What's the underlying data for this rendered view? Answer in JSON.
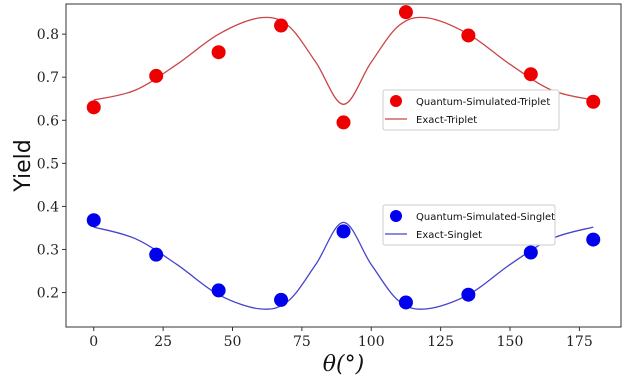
{
  "chart_data": {
    "type": "scatter",
    "xlabel": "θ(°)",
    "ylabel": "Yield",
    "xlim": [
      -10,
      190
    ],
    "ylim": [
      0.12,
      0.87
    ],
    "xticks": [
      0,
      25,
      50,
      75,
      100,
      125,
      150,
      175
    ],
    "yticks": [
      0.2,
      0.3,
      0.4,
      0.5,
      0.6,
      0.7,
      0.8
    ],
    "grid": false,
    "series": [
      {
        "name": "Quantum-Simulated-Triplet",
        "kind": "scatter",
        "color": "#ee0000",
        "x": [
          0,
          22.5,
          45,
          67.5,
          90,
          112.5,
          135,
          157.5,
          180
        ],
        "y": [
          0.63,
          0.703,
          0.758,
          0.82,
          0.595,
          0.851,
          0.797,
          0.707,
          0.643
        ]
      },
      {
        "name": "Exact-Triplet",
        "kind": "line",
        "color": "#cc4444",
        "x": [
          0,
          15,
          30,
          45,
          60,
          70,
          80,
          90,
          100,
          110,
          120,
          135,
          150,
          165,
          180
        ],
        "y": [
          0.647,
          0.67,
          0.73,
          0.8,
          0.838,
          0.82,
          0.735,
          0.637,
          0.735,
          0.82,
          0.838,
          0.8,
          0.73,
          0.67,
          0.647
        ]
      },
      {
        "name": "Quantum-Simulated-Singlet",
        "kind": "scatter",
        "color": "#0000ee",
        "x": [
          0,
          22.5,
          45,
          67.5,
          90,
          112.5,
          135,
          157.5,
          180
        ],
        "y": [
          0.368,
          0.288,
          0.205,
          0.183,
          0.342,
          0.177,
          0.195,
          0.293,
          0.323
        ]
      },
      {
        "name": "Exact-Singlet",
        "kind": "line",
        "color": "#4444cc",
        "x": [
          0,
          15,
          30,
          45,
          60,
          70,
          80,
          90,
          100,
          110,
          120,
          135,
          150,
          165,
          180
        ],
        "y": [
          0.352,
          0.325,
          0.265,
          0.195,
          0.162,
          0.18,
          0.265,
          0.363,
          0.265,
          0.18,
          0.162,
          0.195,
          0.265,
          0.325,
          0.352
        ]
      }
    ],
    "legends": [
      {
        "position": "middle-right",
        "entries": [
          "Quantum-Simulated-Triplet",
          "Exact-Triplet"
        ]
      },
      {
        "position": "lower-right",
        "entries": [
          "Quantum-Simulated-Singlet",
          "Exact-Singlet"
        ]
      }
    ]
  }
}
